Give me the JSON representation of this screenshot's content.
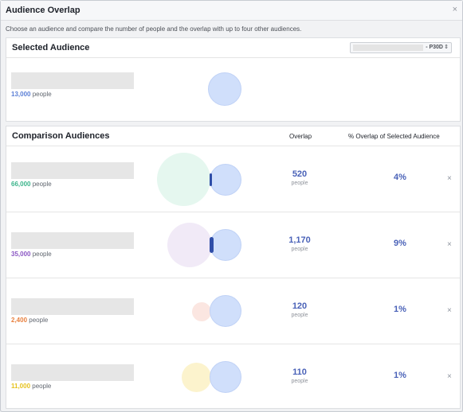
{
  "dialog": {
    "title": "Audience Overlap",
    "close_glyph": "×",
    "subtitle": "Choose an audience and compare the number of people and the overlap with up to four other audiences."
  },
  "selected": {
    "title": "Selected Audience",
    "period": "- P30D",
    "period_arrow": "⇕",
    "count": "13,000",
    "count_unit": "people",
    "count_color": "#5b7fd6"
  },
  "comparison": {
    "title": "Comparison Audiences",
    "overlap_header": "Overlap",
    "pct_header": "% Overlap of Selected Audience",
    "remove_glyph": "×",
    "rows": [
      {
        "count": "66,000",
        "count_unit": "people",
        "count_color": "#3bb48b",
        "overlap": "520",
        "overlap_unit": "people",
        "pct": "4%"
      },
      {
        "count": "35,000",
        "count_unit": "people",
        "count_color": "#8b57c4",
        "overlap": "1,170",
        "overlap_unit": "people",
        "pct": "9%"
      },
      {
        "count": "2,400",
        "count_unit": "people",
        "count_color": "#e8803f",
        "overlap": "120",
        "overlap_unit": "people",
        "pct": "1%"
      },
      {
        "count": "11,000",
        "count_unit": "people",
        "count_color": "#e6c21f",
        "overlap": "110",
        "overlap_unit": "people",
        "pct": "1%"
      }
    ]
  },
  "colors": {
    "overlap_text": "#4a62b8",
    "selected_circle": "#d0dffb",
    "row_circles": [
      "#e5f7ef",
      "#f1eaf7",
      "#fbe6e1",
      "#fcf3cd"
    ]
  }
}
